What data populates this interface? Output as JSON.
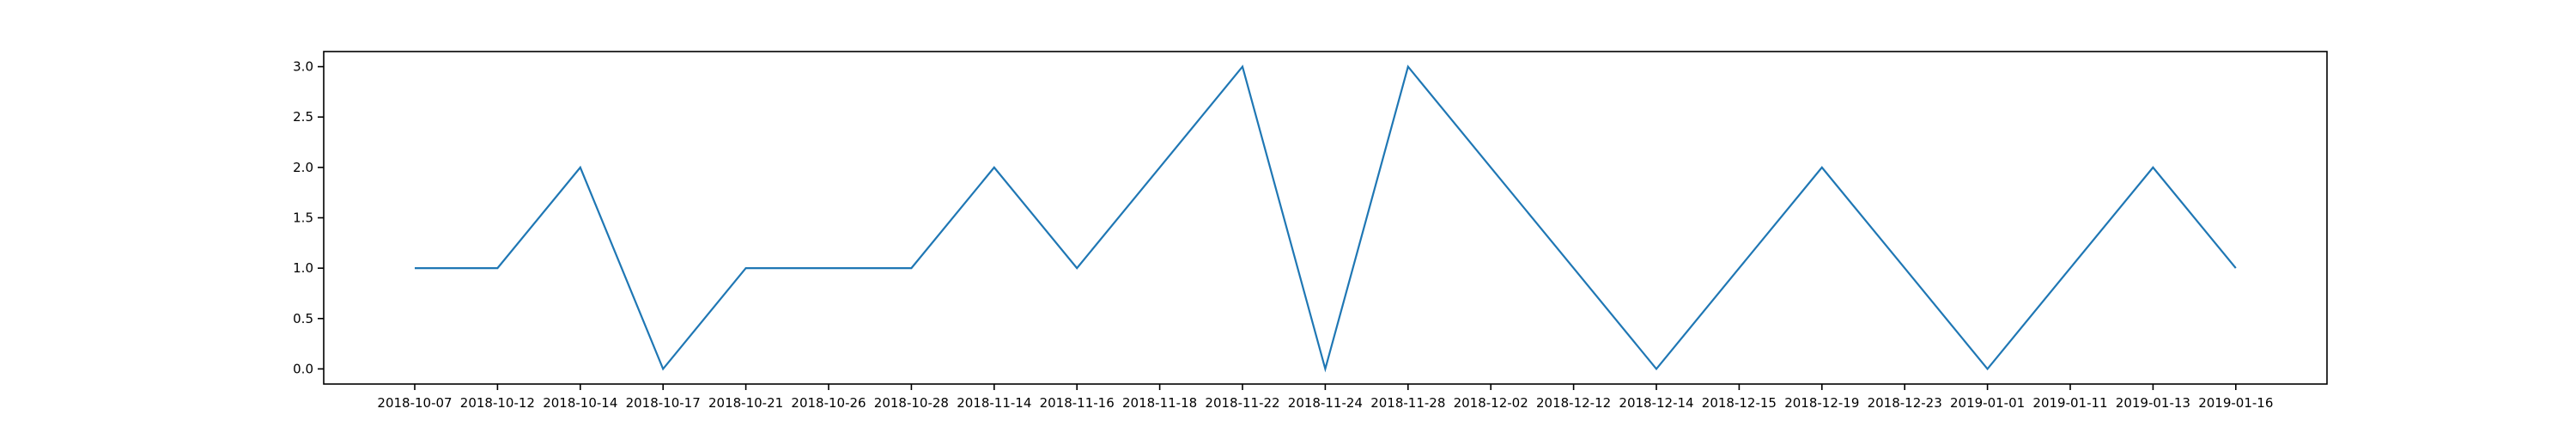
{
  "chart_data": {
    "type": "line",
    "categories": [
      "2018-10-07",
      "2018-10-12",
      "2018-10-14",
      "2018-10-17",
      "2018-10-21",
      "2018-10-26",
      "2018-10-28",
      "2018-11-14",
      "2018-11-16",
      "2018-11-18",
      "2018-11-22",
      "2018-11-24",
      "2018-11-28",
      "2018-12-02",
      "2018-12-12",
      "2018-12-14",
      "2018-12-15",
      "2018-12-19",
      "2018-12-23",
      "2019-01-01",
      "2019-01-11",
      "2019-01-13",
      "2019-01-16"
    ],
    "series": [
      {
        "values": [
          1,
          1,
          2,
          0,
          1,
          1,
          1,
          2,
          1,
          2,
          3,
          0,
          3,
          2,
          1,
          0,
          1,
          2,
          1,
          0,
          1,
          2,
          1
        ]
      }
    ],
    "yticks": [
      "0.0",
      "0.5",
      "1.0",
      "1.5",
      "2.0",
      "2.5",
      "3.0"
    ],
    "ylim": [
      -0.15,
      3.15
    ],
    "title": "",
    "xlabel": "",
    "ylabel": "",
    "grid": false,
    "legend": "none",
    "colors": {
      "line": "#1f77b4",
      "axes": "#000000",
      "background": "#ffffff"
    }
  }
}
